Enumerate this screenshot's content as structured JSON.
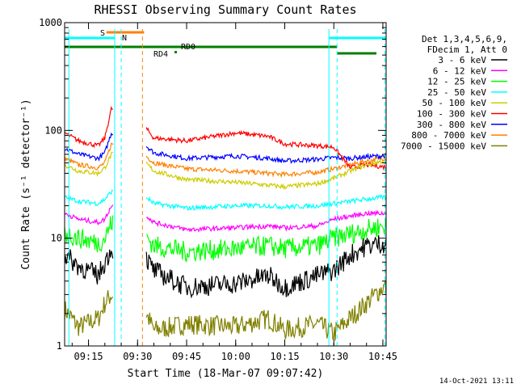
{
  "chart_data": {
    "type": "line",
    "title": "RHESSI Observing Summary Count Rates",
    "xlabel": "Start Time (18-Mar-07 09:07:42)",
    "ylabel": "Count Rate (s⁻¹ detector⁻¹)",
    "y_scale": "log",
    "ylim": [
      1,
      1000
    ],
    "xlim": [
      "09:07:42",
      "10:46:00"
    ],
    "x_ticks": [
      "09:15",
      "09:30",
      "09:45",
      "10:00",
      "10:15",
      "10:30",
      "10:45"
    ],
    "y_ticks": [
      "1",
      "10",
      "100",
      "1000"
    ],
    "timestamp": "14-Oct-2021 13:11",
    "legend": {
      "position": "right",
      "header": [
        "Det 1,3,4,5,6,9,",
        "FDecim 1, Att 0"
      ]
    },
    "flags": [
      {
        "label": "S",
        "color": "#ff8000"
      },
      {
        "label": "N",
        "color": "#00ffff"
      },
      {
        "label": "RD0",
        "color": "#007f00"
      },
      {
        "label": "RD4",
        "color": "#007f00"
      }
    ],
    "series": [
      {
        "name": "3 - 6 keV",
        "color": "#000000",
        "x": [
          "09:07:42",
          "09:12",
          "09:18",
          "09:20",
          "09:22",
          "09:32",
          "09:35",
          "09:45",
          "10:00",
          "10:10",
          "10:15",
          "10:25",
          "10:30",
          "10:35",
          "10:40",
          "10:45"
        ],
        "y": [
          7,
          5.5,
          4.5,
          6,
          8,
          7,
          5,
          3.5,
          3.8,
          4.5,
          3.5,
          4.5,
          5,
          7,
          8.5,
          9
        ]
      },
      {
        "name": "6 - 12 keV",
        "color": "#ff00ff",
        "x": [
          "09:07:42",
          "09:12",
          "09:18",
          "09:20",
          "09:22",
          "09:32",
          "09:35",
          "09:45",
          "10:00",
          "10:10",
          "10:15",
          "10:25",
          "10:30",
          "10:35",
          "10:40",
          "10:45"
        ],
        "y": [
          17,
          15,
          14,
          15,
          20,
          17,
          14,
          12,
          12.5,
          13,
          12.5,
          13,
          15,
          16,
          17,
          17
        ]
      },
      {
        "name": "12 - 25 keV",
        "color": "#00ff00",
        "x": [
          "09:07:42",
          "09:12",
          "09:18",
          "09:20",
          "09:22",
          "09:32",
          "09:35",
          "09:45",
          "10:00",
          "10:10",
          "10:15",
          "10:25",
          "10:30",
          "10:35",
          "10:40",
          "10:45"
        ],
        "y": [
          11,
          10,
          9,
          10,
          14,
          11,
          8.5,
          7.5,
          8,
          8.5,
          8,
          8.5,
          10,
          11,
          12,
          13
        ]
      },
      {
        "name": "25 - 50 keV",
        "color": "#00ffff",
        "x": [
          "09:07:42",
          "09:12",
          "09:18",
          "09:20",
          "09:22",
          "09:32",
          "09:35",
          "09:45",
          "10:00",
          "10:10",
          "10:15",
          "10:25",
          "10:30",
          "10:35",
          "10:40",
          "10:45"
        ],
        "y": [
          24,
          22,
          21,
          23,
          27,
          25,
          21,
          19,
          20,
          20,
          19.5,
          20,
          21,
          22,
          23,
          24
        ]
      },
      {
        "name": "50 - 100 keV",
        "color": "#cccc00",
        "x": [
          "09:07:42",
          "09:12",
          "09:18",
          "09:20",
          "09:22",
          "09:32",
          "09:35",
          "09:45",
          "10:00",
          "10:10",
          "10:15",
          "10:25",
          "10:30",
          "10:35",
          "10:40",
          "10:45"
        ],
        "y": [
          48,
          42,
          40,
          45,
          60,
          52,
          42,
          35,
          33,
          31,
          30,
          32,
          36,
          42,
          48,
          52
        ]
      },
      {
        "name": "100 - 300 keV",
        "color": "#ff0000",
        "x": [
          "09:07:42",
          "09:12",
          "09:18",
          "09:20",
          "09:22",
          "09:32",
          "09:35",
          "09:45",
          "10:00",
          "10:10",
          "10:15",
          "10:25",
          "10:30",
          "10:35",
          "10:40",
          "10:45"
        ],
        "y": [
          95,
          80,
          72,
          85,
          160,
          110,
          85,
          80,
          95,
          88,
          75,
          72,
          70,
          45,
          48,
          46
        ]
      },
      {
        "name": "300 - 800 keV",
        "color": "#0000ff",
        "x": [
          "09:07:42",
          "09:12",
          "09:18",
          "09:20",
          "09:22",
          "09:32",
          "09:35",
          "09:45",
          "10:00",
          "10:10",
          "10:15",
          "10:25",
          "10:30",
          "10:35",
          "10:40",
          "10:45"
        ],
        "y": [
          68,
          60,
          55,
          62,
          95,
          75,
          62,
          55,
          58,
          55,
          52,
          54,
          56,
          55,
          57,
          58
        ]
      },
      {
        "name": "800 - 7000 keV",
        "color": "#ff8000",
        "x": [
          "09:07:42",
          "09:12",
          "09:18",
          "09:20",
          "09:22",
          "09:32",
          "09:35",
          "09:45",
          "10:00",
          "10:10",
          "10:15",
          "10:25",
          "10:30",
          "10:35",
          "10:40",
          "10:45"
        ],
        "y": [
          55,
          48,
          45,
          50,
          75,
          60,
          50,
          44,
          42,
          40,
          39,
          41,
          44,
          48,
          52,
          55
        ]
      },
      {
        "name": "7000 - 15000 keV",
        "color": "#808000",
        "x": [
          "09:07:42",
          "09:12",
          "09:18",
          "09:20",
          "09:22",
          "09:32",
          "09:35",
          "09:45",
          "10:00",
          "10:10",
          "10:15",
          "10:25",
          "10:30",
          "10:35",
          "10:40",
          "10:45"
        ],
        "y": [
          2.2,
          1.5,
          1.8,
          2.5,
          3,
          2.2,
          1.4,
          1.6,
          1.5,
          1.8,
          1.4,
          1.6,
          1.3,
          1.8,
          2.5,
          3.5
        ]
      }
    ]
  }
}
